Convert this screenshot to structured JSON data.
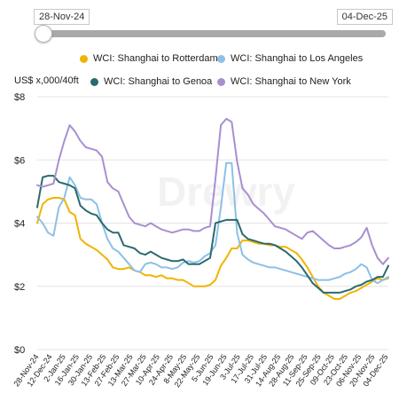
{
  "range": {
    "start_label": "28-Nov-24",
    "end_label": "04-Dec-25",
    "position": 0
  },
  "watermark": "Drewry",
  "colors": {
    "rotterdam": "#f0b400",
    "los_angeles": "#8cc0e6",
    "genoa": "#2b6a6e",
    "new_york": "#a98fd0"
  },
  "chart_data": {
    "type": "line",
    "title": "",
    "ylabel": "US$ x,000/40ft",
    "xlabel": "",
    "ylim": [
      0,
      8
    ],
    "yticks": [
      0,
      2,
      4,
      6,
      8
    ],
    "ytick_labels": [
      "$0",
      "$2",
      "$4",
      "$6",
      "$8"
    ],
    "grid": true,
    "legend_position": "top",
    "x_tick_labels": [
      "28-Nov-24",
      "12-Dec-24",
      "2-Jan-25",
      "16-Jan-25",
      "30-Jan-25",
      "13-Feb-25",
      "27-Feb-25",
      "13-Mar-25",
      "27-Mar-25",
      "10-Apr-25",
      "24-Apr-25",
      "8-May-25",
      "22-May-25",
      "5-Jun-25",
      "19-Jun-25",
      "3-Jul-25",
      "17-Jul-25",
      "31-Jul-25",
      "14-Aug-25",
      "28-Aug-25",
      "11-Sep-25",
      "25-Sep-25",
      "09-Oct-25",
      "23-Oct-25",
      "06-Nov-25",
      "20-Nov-25",
      "04-Dec-25"
    ],
    "series": [
      {
        "name": "WCI: Shanghai to Rotterdam",
        "color": "#f0b400",
        "values": [
          4.0,
          4.6,
          4.75,
          4.8,
          4.8,
          4.75,
          4.35,
          4.25,
          3.5,
          3.35,
          3.25,
          3.15,
          3.0,
          2.85,
          2.6,
          2.55,
          2.55,
          2.6,
          2.5,
          2.45,
          2.35,
          2.35,
          2.3,
          2.35,
          2.25,
          2.25,
          2.2,
          2.2,
          2.1,
          2.0,
          2.0,
          2.0,
          2.05,
          2.2,
          2.65,
          2.9,
          3.2,
          3.2,
          3.45,
          3.45,
          3.4,
          3.35,
          3.35,
          3.3,
          3.3,
          3.25,
          3.25,
          3.15,
          3.05,
          2.85,
          2.6,
          2.3,
          2.0,
          1.8,
          1.7,
          1.6,
          1.6,
          1.7,
          1.8,
          1.85,
          1.95,
          2.05,
          2.15,
          2.25,
          2.2,
          2.25
        ]
      },
      {
        "name": "WCI: Shanghai to Los Angeles",
        "color": "#8cc0e6",
        "values": [
          4.2,
          4.0,
          3.7,
          3.6,
          4.5,
          4.8,
          5.45,
          5.2,
          4.8,
          4.75,
          4.75,
          4.6,
          4.0,
          3.5,
          3.2,
          3.1,
          2.9,
          2.7,
          2.5,
          2.45,
          2.7,
          2.75,
          2.7,
          2.6,
          2.6,
          2.55,
          2.6,
          2.75,
          2.8,
          2.75,
          2.8,
          2.95,
          3.05,
          3.3,
          4.5,
          5.9,
          5.9,
          3.7,
          3.0,
          2.85,
          2.75,
          2.7,
          2.65,
          2.6,
          2.6,
          2.55,
          2.5,
          2.45,
          2.4,
          2.35,
          2.3,
          2.25,
          2.2,
          2.2,
          2.2,
          2.25,
          2.3,
          2.4,
          2.45,
          2.55,
          2.7,
          2.6,
          2.2,
          2.1,
          2.2,
          2.3
        ]
      },
      {
        "name": "WCI: Shanghai to Genoa",
        "color": "#2b6a6e",
        "values": [
          4.5,
          5.45,
          5.5,
          5.5,
          5.3,
          5.25,
          5.2,
          5.1,
          4.55,
          4.4,
          4.3,
          4.25,
          4.0,
          3.8,
          3.7,
          3.7,
          3.3,
          3.25,
          3.2,
          3.05,
          3.0,
          3.1,
          3.0,
          2.9,
          2.85,
          2.8,
          2.8,
          2.85,
          2.7,
          2.7,
          2.7,
          2.8,
          2.9,
          4.0,
          4.05,
          4.1,
          4.1,
          4.1,
          3.65,
          3.5,
          3.45,
          3.4,
          3.35,
          3.35,
          3.3,
          3.2,
          3.1,
          2.95,
          2.8,
          2.6,
          2.35,
          2.1,
          1.95,
          1.8,
          1.8,
          1.8,
          1.8,
          1.85,
          1.9,
          2.0,
          2.05,
          2.15,
          2.2,
          2.3,
          2.3,
          2.65
        ]
      },
      {
        "name": "WCI: Shanghai to New York",
        "color": "#a98fd0",
        "values": [
          5.2,
          5.15,
          5.2,
          5.25,
          6.0,
          6.6,
          7.1,
          6.9,
          6.6,
          6.4,
          6.35,
          6.3,
          6.1,
          5.3,
          5.1,
          5.0,
          4.6,
          4.2,
          4.0,
          3.95,
          3.9,
          4.0,
          3.9,
          3.8,
          3.75,
          3.7,
          3.75,
          3.8,
          3.8,
          3.75,
          3.75,
          3.85,
          3.9,
          5.4,
          7.1,
          7.3,
          7.2,
          5.95,
          5.1,
          4.9,
          4.6,
          4.45,
          4.3,
          4.1,
          3.9,
          3.85,
          3.8,
          3.7,
          3.6,
          3.5,
          3.7,
          3.75,
          3.6,
          3.45,
          3.3,
          3.2,
          3.2,
          3.25,
          3.3,
          3.4,
          3.55,
          3.85,
          3.3,
          2.9,
          2.7,
          2.9
        ]
      }
    ]
  }
}
